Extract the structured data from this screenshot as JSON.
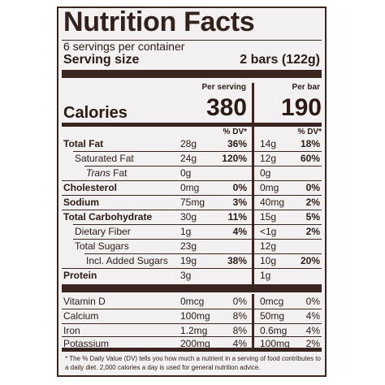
{
  "title": "Nutrition Facts",
  "servings_per_container": "6 servings per container",
  "serving_size_label": "Serving size",
  "serving_size_value": "2 bars (122g)",
  "col_per_serving": "Per serving",
  "col_per_bar": "Per bar",
  "calories_label": "Calories",
  "calories_serving": "380",
  "calories_bar": "190",
  "dv_header": "% DV*",
  "rows": [
    {
      "name": "Total Fat",
      "s_amt": "28g",
      "s_pct": "36%",
      "b_amt": "14g",
      "b_pct": "18%"
    },
    {
      "name": "Saturated Fat",
      "s_amt": "24g",
      "s_pct": "120%",
      "b_amt": "12g",
      "b_pct": "60%"
    },
    {
      "name_italic": "Trans",
      "name_rest": " Fat",
      "s_amt": "0g",
      "s_pct": "",
      "b_amt": "0g",
      "b_pct": ""
    },
    {
      "name": "Cholesterol",
      "s_amt": "0mg",
      "s_pct": "0%",
      "b_amt": "0mg",
      "b_pct": "0%"
    },
    {
      "name": "Sodium",
      "s_amt": "75mg",
      "s_pct": "3%",
      "b_amt": "40mg",
      "b_pct": "2%"
    },
    {
      "name": "Total Carbohydrate",
      "s_amt": "30g",
      "s_pct": "11%",
      "b_amt": "15g",
      "b_pct": "5%"
    },
    {
      "name": "Dietary Fiber",
      "s_amt": "1g",
      "s_pct": "4%",
      "b_amt": "<1g",
      "b_pct": "2%"
    },
    {
      "name": "Total Sugars",
      "s_amt": "23g",
      "s_pct": "",
      "b_amt": "12g",
      "b_pct": ""
    },
    {
      "name": "Incl. Added Sugars",
      "s_amt": "19g",
      "s_pct": "38%",
      "b_amt": "10g",
      "b_pct": "20%"
    },
    {
      "name": "Protein",
      "s_amt": "3g",
      "s_pct": "",
      "b_amt": "1g",
      "b_pct": ""
    }
  ],
  "vitamins": [
    {
      "name": "Vitamin D",
      "s_amt": "0mcg",
      "s_pct": "0%",
      "b_amt": "0mcg",
      "b_pct": "0%"
    },
    {
      "name": "Calcium",
      "s_amt": "100mg",
      "s_pct": "8%",
      "b_amt": "50mg",
      "b_pct": "4%"
    },
    {
      "name": "Iron",
      "s_amt": "1.2mg",
      "s_pct": "8%",
      "b_amt": "0.6mg",
      "b_pct": "4%"
    },
    {
      "name": "Potassium",
      "s_amt": "200mg",
      "s_pct": "4%",
      "b_amt": "100mg",
      "b_pct": "2%"
    }
  ],
  "footnote": "* The % Daily Value (DV) tells you how much a nutrient in a serving of food contributes to a daily diet. 2,000 calories a day is used for general nutrition advice."
}
